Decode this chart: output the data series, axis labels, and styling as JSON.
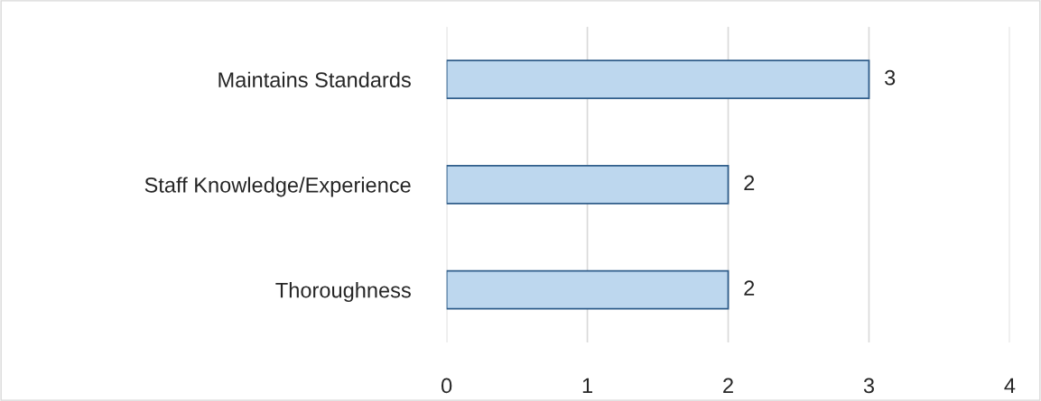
{
  "chart_data": {
    "type": "bar",
    "orientation": "horizontal",
    "categories": [
      "Maintains Standards",
      "Staff Knowledge/Experience",
      "Thoroughness"
    ],
    "values": [
      3,
      2,
      2
    ],
    "color": "#bdd7ee",
    "xlim": [
      0,
      4
    ],
    "xticks": [
      0,
      1,
      2,
      3,
      4
    ],
    "grid": "x",
    "data_labels": true
  }
}
